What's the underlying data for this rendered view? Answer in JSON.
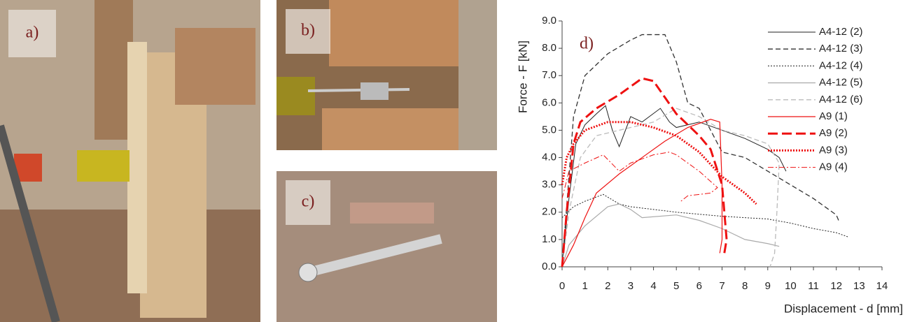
{
  "panels": [
    "a)",
    "b)",
    "c)"
  ],
  "chart_data": {
    "type": "line",
    "annotation": "d)",
    "x_label": "Displacement - d [mm]",
    "y_label": "Force - F [kN]",
    "xlim": [
      0,
      14
    ],
    "xticks": [
      0,
      1,
      2,
      3,
      4,
      5,
      6,
      7,
      8,
      9,
      10,
      11,
      12,
      13,
      14
    ],
    "ylim": [
      0,
      9
    ],
    "yticks": [
      {
        "value": 0,
        "label": "0.0"
      },
      {
        "value": 1,
        "label": "1.0"
      },
      {
        "value": 2,
        "label": "2.0"
      },
      {
        "value": 3,
        "label": "3.0"
      },
      {
        "value": 4,
        "label": "4.0"
      },
      {
        "value": 5,
        "label": "5.0"
      },
      {
        "value": 6,
        "label": "6.0"
      },
      {
        "value": 7,
        "label": "7.0"
      },
      {
        "value": 8,
        "label": "8.0"
      },
      {
        "value": 9,
        "label": "9.0"
      }
    ],
    "series": [
      {
        "name": "A4-12 (2)",
        "color": "#222222",
        "style": "solid",
        "width": 1,
        "x": [
          0,
          0.3,
          0.6,
          1,
          1.5,
          1.9,
          2.2,
          2.5,
          3,
          3.5,
          4.3,
          4.7,
          5,
          6,
          7,
          8,
          9,
          9.5,
          9.8
        ],
        "values": [
          0,
          2.5,
          4.5,
          5.2,
          5.6,
          5.9,
          5.0,
          4.4,
          5.5,
          5.3,
          5.8,
          5.3,
          5.1,
          5.3,
          5.0,
          4.7,
          4.3,
          4.0,
          3.5
        ]
      },
      {
        "name": "A4-12 (3)",
        "color": "#333333",
        "style": "dashed",
        "width": 1.3,
        "x": [
          0,
          0.5,
          1,
          2,
          3,
          3.5,
          4.5,
          5,
          5.5,
          6,
          7,
          8,
          9,
          10,
          11,
          12,
          12.1
        ],
        "values": [
          0,
          5.5,
          7,
          7.8,
          8.3,
          8.5,
          8.5,
          7.5,
          6.0,
          5.8,
          4.2,
          4.0,
          3.5,
          3.0,
          2.5,
          1.9,
          1.7
        ]
      },
      {
        "name": "A4-12 (4)",
        "color": "#222222",
        "style": "dotted",
        "width": 1,
        "x": [
          0,
          0.5,
          1,
          1.8,
          2.5,
          3,
          5,
          7,
          9,
          10,
          11,
          12,
          12.5
        ],
        "values": [
          1.8,
          2.2,
          2.4,
          2.65,
          2.3,
          2.2,
          2.0,
          1.85,
          1.75,
          1.6,
          1.4,
          1.25,
          1.1
        ]
      },
      {
        "name": "A4-12 (5)",
        "color": "#aaaaaa",
        "style": "solid",
        "width": 1.2,
        "x": [
          0,
          0.3,
          1,
          2,
          2.5,
          3,
          3.5,
          5,
          6,
          7,
          8,
          9,
          9.5
        ],
        "values": [
          0,
          0.8,
          1.5,
          2.2,
          2.3,
          2.1,
          1.8,
          1.9,
          1.7,
          1.4,
          1.0,
          0.85,
          0.75
        ]
      },
      {
        "name": "A4-12 (6)",
        "color": "#bbbbbb",
        "style": "dashed",
        "width": 1.3,
        "x": [
          0,
          0.3,
          0.8,
          1.5,
          2.5,
          4,
          5,
          6,
          7,
          8,
          9,
          9.5,
          9.4,
          9.3,
          9.1
        ],
        "values": [
          0,
          2,
          4.0,
          4.8,
          5.0,
          5.3,
          5.8,
          5.5,
          5.0,
          4.8,
          4.5,
          3.8,
          2.0,
          0.5,
          0
        ]
      },
      {
        "name": "A9 (1)",
        "color": "#ee1111",
        "style": "solid",
        "width": 1.2,
        "x": [
          0,
          0.5,
          1,
          1.5,
          2.5,
          3.5,
          4.5,
          5.5,
          6.5,
          6.9,
          7,
          7,
          6.9
        ],
        "values": [
          0,
          0.8,
          1.8,
          2.7,
          3.4,
          4.0,
          4.6,
          5.1,
          5.4,
          5.3,
          3,
          1,
          0.5
        ]
      },
      {
        "name": "A9 (2)",
        "color": "#ee1111",
        "style": "longdash",
        "width": 3,
        "x": [
          0,
          0.2,
          0.5,
          0.8,
          1.5,
          2.5,
          3.5,
          4,
          4.5,
          5,
          6,
          6.5,
          7,
          7.2,
          7.1
        ],
        "values": [
          0,
          2,
          4.5,
          5.3,
          5.8,
          6.3,
          6.9,
          6.8,
          6.2,
          5.6,
          4.8,
          4.3,
          3,
          1,
          0.5
        ]
      },
      {
        "name": "A9 (3)",
        "color": "#ee1111",
        "style": "dotted",
        "width": 3,
        "x": [
          0,
          0.2,
          0.5,
          1,
          2,
          3,
          4,
          5,
          6,
          7,
          8,
          8.5
        ],
        "values": [
          3.0,
          4.0,
          4.5,
          5.0,
          5.3,
          5.3,
          5.1,
          4.8,
          4.2,
          3.3,
          2.7,
          2.3
        ]
      },
      {
        "name": "A9 (4)",
        "color": "#ee1111",
        "style": "dashdot",
        "width": 1,
        "x": [
          0,
          0.3,
          1,
          1.8,
          2.5,
          3,
          4,
          4.7,
          5,
          6,
          6.8,
          6.5,
          5.5,
          5.2
        ],
        "values": [
          2.5,
          3.5,
          3.8,
          4.1,
          3.5,
          3.8,
          4.1,
          4.2,
          4.1,
          3.5,
          2.9,
          2.7,
          2.6,
          2.4
        ]
      }
    ]
  }
}
